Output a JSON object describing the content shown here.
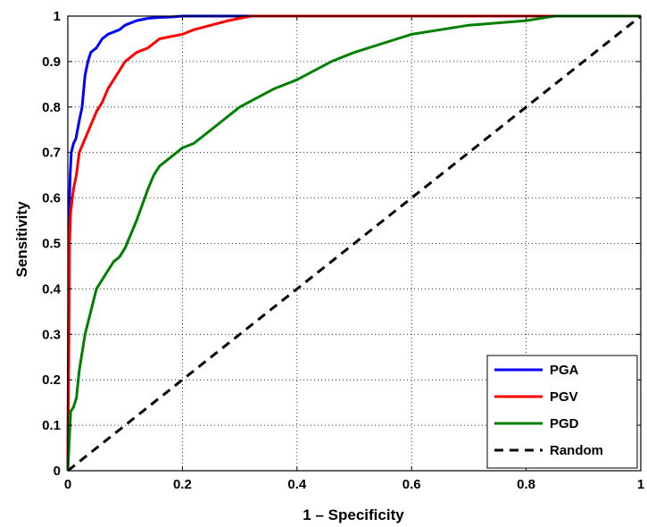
{
  "chart_data": {
    "type": "line",
    "xlabel": "1 – Specificity",
    "ylabel": "Sensitivity",
    "xlim": [
      0,
      1
    ],
    "ylim": [
      0,
      1
    ],
    "xticks": [
      "0",
      "0.2",
      "0.4",
      "0.6",
      "0.8",
      "1"
    ],
    "yticks": [
      "0",
      "0.1",
      "0.2",
      "0.3",
      "0.4",
      "0.5",
      "0.6",
      "0.7",
      "0.8",
      "0.9",
      "1"
    ],
    "grid": true,
    "legend_position": "bottom-right",
    "series": [
      {
        "name": "PGA",
        "color": "#0000ff",
        "style": "solid",
        "x": [
          0,
          0.002,
          0.004,
          0.006,
          0.01,
          0.014,
          0.02,
          0.025,
          0.03,
          0.035,
          0.04,
          0.05,
          0.06,
          0.07,
          0.08,
          0.09,
          0.1,
          0.12,
          0.14,
          0.16,
          0.18,
          0.2,
          0.25,
          0.3,
          1
        ],
        "y": [
          0,
          0.55,
          0.65,
          0.7,
          0.72,
          0.73,
          0.77,
          0.8,
          0.87,
          0.9,
          0.92,
          0.93,
          0.95,
          0.96,
          0.965,
          0.97,
          0.98,
          0.99,
          0.995,
          0.997,
          0.998,
          1,
          1,
          1,
          1
        ]
      },
      {
        "name": "PGV",
        "color": "#ff0000",
        "style": "solid",
        "x": [
          0,
          0.002,
          0.003,
          0.005,
          0.01,
          0.015,
          0.02,
          0.03,
          0.04,
          0.05,
          0.06,
          0.07,
          0.08,
          0.09,
          0.1,
          0.12,
          0.14,
          0.16,
          0.18,
          0.2,
          0.22,
          0.25,
          0.28,
          0.3,
          0.32,
          0.35,
          0.5,
          0.8,
          0.85,
          1
        ],
        "y": [
          0,
          0.3,
          0.5,
          0.57,
          0.62,
          0.65,
          0.7,
          0.73,
          0.76,
          0.79,
          0.81,
          0.84,
          0.86,
          0.88,
          0.9,
          0.92,
          0.93,
          0.95,
          0.955,
          0.96,
          0.97,
          0.98,
          0.99,
          0.995,
          1,
          1,
          1,
          1,
          1,
          1
        ]
      },
      {
        "name": "PGD",
        "color": "#008000",
        "style": "solid",
        "x": [
          0,
          0.005,
          0.01,
          0.015,
          0.02,
          0.03,
          0.04,
          0.05,
          0.06,
          0.07,
          0.08,
          0.09,
          0.1,
          0.12,
          0.14,
          0.15,
          0.16,
          0.18,
          0.2,
          0.22,
          0.25,
          0.28,
          0.3,
          0.33,
          0.36,
          0.4,
          0.43,
          0.46,
          0.5,
          0.55,
          0.6,
          0.65,
          0.7,
          0.8,
          0.85,
          1
        ],
        "y": [
          0,
          0.13,
          0.14,
          0.16,
          0.22,
          0.3,
          0.35,
          0.4,
          0.42,
          0.44,
          0.46,
          0.47,
          0.49,
          0.55,
          0.62,
          0.65,
          0.67,
          0.69,
          0.71,
          0.72,
          0.75,
          0.78,
          0.8,
          0.82,
          0.84,
          0.86,
          0.88,
          0.9,
          0.92,
          0.94,
          0.96,
          0.97,
          0.98,
          0.99,
          1,
          1
        ]
      },
      {
        "name": "Random",
        "color": "#000000",
        "style": "dashed",
        "x": [
          0,
          1
        ],
        "y": [
          0,
          1
        ]
      }
    ]
  }
}
